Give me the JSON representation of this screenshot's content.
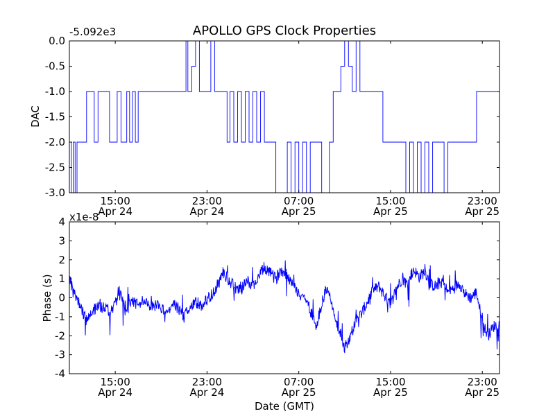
{
  "figure": {
    "title": "APOLLO GPS Clock Properties",
    "line_color": "#0000ff"
  },
  "chart_data": [
    {
      "type": "line",
      "ylabel": "DAC",
      "xlabel": "",
      "offset_text": "-5.092e3",
      "ylim": [
        -3.0,
        0.0
      ],
      "xlim": [
        "2012-04-24 11:00",
        "2012-04-26 00:30"
      ],
      "yticks": [
        {
          "value": 0.0,
          "label": "0.0"
        },
        {
          "value": -0.5,
          "label": "-0.5"
        },
        {
          "value": -1.0,
          "label": "-1.0"
        },
        {
          "value": -1.5,
          "label": "-1.5"
        },
        {
          "value": -2.0,
          "label": "-2.0"
        },
        {
          "value": -2.5,
          "label": "-2.5"
        },
        {
          "value": -3.0,
          "label": "-3.0"
        }
      ],
      "xticks": [
        {
          "value": "2012-04-24 15:00",
          "line1": "15:00",
          "line2": "Apr 24"
        },
        {
          "value": "2012-04-24 23:00",
          "line1": "23:00",
          "line2": "Apr 24"
        },
        {
          "value": "2012-04-25 07:00",
          "line1": "07:00",
          "line2": "Apr 25"
        },
        {
          "value": "2012-04-25 15:00",
          "line1": "15:00",
          "line2": "Apr 25"
        },
        {
          "value": "2012-04-25 23:00",
          "line1": "23:00",
          "line2": "Apr 25"
        }
      ],
      "series": [
        {
          "x": [
            "2012-04-24 11:00",
            "2012-04-24 11:10",
            "2012-04-24 11:20",
            "2012-04-24 11:30",
            "2012-04-24 11:40",
            "2012-04-24 12:00",
            "2012-04-24 12:30",
            "2012-04-24 13:00",
            "2012-04-24 13:10",
            "2012-04-24 13:30",
            "2012-04-24 14:00",
            "2012-04-24 14:30",
            "2012-04-24 15:00",
            "2012-04-24 15:10",
            "2012-04-24 15:30",
            "2012-04-24 16:00",
            "2012-04-24 16:15",
            "2012-04-24 16:30",
            "2012-04-24 16:45",
            "2012-04-24 17:00",
            "2012-04-24 17:30",
            "2012-04-24 17:45",
            "2012-04-24 18:00",
            "2012-04-24 18:30",
            "2012-04-24 19:00",
            "2012-04-24 20:00",
            "2012-04-24 21:00",
            "2012-04-24 21:10",
            "2012-04-24 21:20",
            "2012-04-24 21:40",
            "2012-04-24 22:00",
            "2012-04-24 22:20",
            "2012-04-24 22:40",
            "2012-04-24 23:00",
            "2012-04-24 23:20",
            "2012-04-24 23:40",
            "2012-04-25 00:00",
            "2012-04-25 00:30",
            "2012-04-25 00:45",
            "2012-04-25 01:00",
            "2012-04-25 01:20",
            "2012-04-25 01:40",
            "2012-04-25 02:00",
            "2012-04-25 02:20",
            "2012-04-25 02:40",
            "2012-04-25 03:00",
            "2012-04-25 03:20",
            "2012-04-25 03:40",
            "2012-04-25 04:00",
            "2012-04-25 04:20",
            "2012-04-25 04:40",
            "2012-04-25 05:00",
            "2012-04-25 05:30",
            "2012-04-25 06:00",
            "2012-04-25 06:20",
            "2012-04-25 06:40",
            "2012-04-25 07:00",
            "2012-04-25 07:20",
            "2012-04-25 07:40",
            "2012-04-25 08:00",
            "2012-04-25 08:20",
            "2012-04-25 08:40",
            "2012-04-25 09:00",
            "2012-04-25 09:20",
            "2012-04-25 09:40",
            "2012-04-25 10:00",
            "2012-04-25 10:20",
            "2012-04-25 10:40",
            "2012-04-25 11:00",
            "2012-04-25 11:20",
            "2012-04-25 11:40",
            "2012-04-25 12:00",
            "2012-04-25 12:20",
            "2012-04-25 12:40",
            "2012-04-25 13:00",
            "2012-04-25 14:00",
            "2012-04-25 14:20",
            "2012-04-25 15:00",
            "2012-04-25 16:00",
            "2012-04-25 16:20",
            "2012-04-25 16:40",
            "2012-04-25 17:00",
            "2012-04-25 17:20",
            "2012-04-25 17:40",
            "2012-04-25 18:00",
            "2012-04-25 18:20",
            "2012-04-25 18:40",
            "2012-04-25 19:00",
            "2012-04-25 19:20",
            "2012-04-25 19:40",
            "2012-04-25 20:00",
            "2012-04-25 20:30",
            "2012-04-25 21:00",
            "2012-04-25 21:30",
            "2012-04-25 22:00",
            "2012-04-25 22:30",
            "2012-04-25 23:00",
            "2012-04-25 23:30",
            "2012-04-26 00:00",
            "2012-04-26 00:30"
          ],
          "y": [
            -2.0,
            -3.0,
            -2.0,
            -3.0,
            -2.0,
            -2.0,
            -1.0,
            -1.0,
            -2.0,
            -1.0,
            -1.0,
            -2.0,
            -2.0,
            -1.0,
            -2.0,
            -1.0,
            -2.0,
            -1.0,
            -2.0,
            -1.0,
            -1.0,
            -1.0,
            -1.0,
            -1.0,
            -1.0,
            -1.0,
            -1.0,
            0.0,
            -1.0,
            -0.5,
            0.0,
            -1.0,
            -1.0,
            -1.0,
            0.0,
            -1.0,
            -1.0,
            -1.0,
            -2.0,
            -1.0,
            -2.0,
            -1.0,
            -2.0,
            -1.0,
            -2.0,
            -1.0,
            -2.0,
            -1.0,
            -2.0,
            -2.0,
            -2.0,
            -3.0,
            -3.0,
            -2.0,
            -3.0,
            -2.0,
            -3.0,
            -2.0,
            -3.0,
            -2.0,
            -2.0,
            -2.0,
            -3.0,
            -3.0,
            -2.0,
            -1.0,
            -1.0,
            -0.5,
            0.0,
            -0.5,
            -1.0,
            0.0,
            -1.0,
            -1.0,
            -1.0,
            -1.0,
            -2.0,
            -2.0,
            -2.0,
            -3.0,
            -2.0,
            -3.0,
            -2.0,
            -3.0,
            -2.0,
            -3.0,
            -2.0,
            -2.0,
            -2.0,
            -3.0,
            -2.0,
            -2.0,
            -2.0,
            -2.0,
            -2.0,
            -1.0,
            -1.0,
            -1.0,
            -1.0,
            -1.0
          ]
        }
      ]
    },
    {
      "type": "line",
      "ylabel": "Phase (s)",
      "xlabel": "Date (GMT)",
      "offset_text": "x1e-8",
      "ylim": [
        -4,
        4
      ],
      "xlim": [
        "2012-04-24 11:00",
        "2012-04-26 00:30"
      ],
      "yticks": [
        {
          "value": 4,
          "label": "4"
        },
        {
          "value": 3,
          "label": "3"
        },
        {
          "value": 2,
          "label": "2"
        },
        {
          "value": 1,
          "label": "1"
        },
        {
          "value": 0,
          "label": "0"
        },
        {
          "value": -1,
          "label": "-1"
        },
        {
          "value": -2,
          "label": "-2"
        },
        {
          "value": -3,
          "label": "-3"
        },
        {
          "value": -4,
          "label": "-4"
        }
      ],
      "xticks": [
        {
          "value": "2012-04-24 15:00",
          "line1": "15:00",
          "line2": "Apr 24"
        },
        {
          "value": "2012-04-24 23:00",
          "line1": "23:00",
          "line2": "Apr 24"
        },
        {
          "value": "2012-04-25 07:00",
          "line1": "07:00",
          "line2": "Apr 25"
        },
        {
          "value": "2012-04-25 15:00",
          "line1": "15:00",
          "line2": "Apr 25"
        },
        {
          "value": "2012-04-25 23:00",
          "line1": "23:00",
          "line2": "Apr 25"
        }
      ],
      "series": [
        {
          "x": [
            "2012-04-24 11:00",
            "2012-04-24 11:30",
            "2012-04-24 12:00",
            "2012-04-24 12:30",
            "2012-04-24 13:00",
            "2012-04-24 13:30",
            "2012-04-24 14:00",
            "2012-04-24 14:30",
            "2012-04-24 15:00",
            "2012-04-24 15:30",
            "2012-04-24 16:00",
            "2012-04-24 16:30",
            "2012-04-24 17:00",
            "2012-04-24 17:30",
            "2012-04-24 18:00",
            "2012-04-24 18:30",
            "2012-04-24 19:00",
            "2012-04-24 19:30",
            "2012-04-24 20:00",
            "2012-04-24 20:30",
            "2012-04-24 21:00",
            "2012-04-24 21:30",
            "2012-04-24 22:00",
            "2012-04-24 22:30",
            "2012-04-24 23:00",
            "2012-04-24 23:30",
            "2012-04-25 00:00",
            "2012-04-25 00:30",
            "2012-04-25 01:00",
            "2012-04-25 01:30",
            "2012-04-25 02:00",
            "2012-04-25 02:30",
            "2012-04-25 03:00",
            "2012-04-25 03:30",
            "2012-04-25 04:00",
            "2012-04-25 04:30",
            "2012-04-25 05:00",
            "2012-04-25 05:30",
            "2012-04-25 06:00",
            "2012-04-25 06:30",
            "2012-04-25 07:00",
            "2012-04-25 07:30",
            "2012-04-25 08:00",
            "2012-04-25 08:30",
            "2012-04-25 09:00",
            "2012-04-25 09:30",
            "2012-04-25 10:00",
            "2012-04-25 10:30",
            "2012-04-25 11:00",
            "2012-04-25 11:30",
            "2012-04-25 12:00",
            "2012-04-25 12:30",
            "2012-04-25 13:00",
            "2012-04-25 13:30",
            "2012-04-25 14:00",
            "2012-04-25 14:30",
            "2012-04-25 15:00",
            "2012-04-25 15:30",
            "2012-04-25 16:00",
            "2012-04-25 16:30",
            "2012-04-25 17:00",
            "2012-04-25 17:30",
            "2012-04-25 18:00",
            "2012-04-25 18:30",
            "2012-04-25 19:00",
            "2012-04-25 19:30",
            "2012-04-25 20:00",
            "2012-04-25 20:30",
            "2012-04-25 21:00",
            "2012-04-25 21:30",
            "2012-04-25 22:00",
            "2012-04-25 22:30",
            "2012-04-25 23:00",
            "2012-04-25 23:30",
            "2012-04-26 00:00",
            "2012-04-26 00:30"
          ],
          "y": [
            1.0,
            0.2,
            -0.5,
            -1.2,
            -0.8,
            -0.4,
            -0.5,
            -0.7,
            -0.3,
            0.1,
            -0.6,
            -0.2,
            -0.4,
            -0.1,
            -0.6,
            -0.4,
            -0.5,
            -0.9,
            -0.3,
            -0.6,
            -1.0,
            -0.5,
            -0.2,
            -0.4,
            -0.1,
            0.2,
            0.8,
            1.2,
            0.9,
            0.5,
            0.4,
            0.9,
            0.6,
            1.1,
            1.6,
            1.3,
            1.0,
            1.5,
            1.2,
            0.6,
            0.3,
            0.0,
            -0.6,
            -1.5,
            -0.3,
            0.6,
            -0.7,
            -1.7,
            -2.6,
            -2.0,
            -1.2,
            -0.8,
            -0.2,
            0.4,
            0.6,
            0.1,
            -0.4,
            0.5,
            1.0,
            0.7,
            1.5,
            1.1,
            1.4,
            0.7,
            0.6,
            0.9,
            0.3,
            0.5,
            0.8,
            0.2,
            0.0,
            0.3,
            -1.3,
            -2.0,
            -1.5,
            -1.4
          ]
        }
      ]
    }
  ]
}
